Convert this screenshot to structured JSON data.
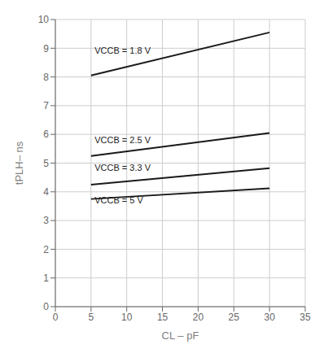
{
  "chart_data": {
    "type": "line",
    "x": [
      5,
      30
    ],
    "series": [
      {
        "color": "#1a1a1a",
        "values": [
          8.05,
          9.55
        ]
      },
      {
        "color": "#1a1a1a",
        "values": [
          5.25,
          6.05
        ]
      },
      {
        "color": "#1a1a1a",
        "values": [
          4.25,
          4.82
        ]
      },
      {
        "color": "#1a1a1a",
        "values": [
          3.75,
          4.12
        ]
      }
    ],
    "annotations": [
      {
        "text": "VCCB = 1.8 V",
        "x": 5.5,
        "y": 8.72,
        "color": "#1a1a1a"
      },
      {
        "text": "VCCB = 2.5 V",
        "x": 5.5,
        "y": 5.62,
        "color": "#1a1a1a"
      },
      {
        "text": "VCCB = 3.3 V",
        "x": 5.5,
        "y": 4.65,
        "color": "#1a1a1a"
      },
      {
        "text": "VCCB = 5 V",
        "x": 5.5,
        "y": 3.52,
        "color": "#1a1a1a"
      }
    ],
    "xlabel": "CL – pF",
    "ylabel": "tPLH– ns",
    "xlim": [
      0,
      35
    ],
    "ylim": [
      0,
      10
    ],
    "xticks": [
      0,
      5,
      10,
      15,
      20,
      25,
      30,
      35
    ],
    "yticks": [
      0,
      1,
      2,
      3,
      4,
      5,
      6,
      7,
      8,
      9,
      10
    ],
    "grid": true
  }
}
